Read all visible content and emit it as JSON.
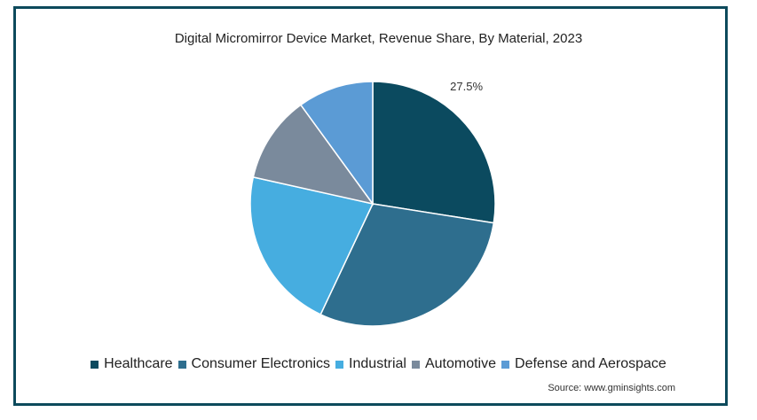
{
  "chart_data": {
    "type": "pie",
    "title": "Digital Micromirror Device Market, Revenue Share, By Material, 2023",
    "categories": [
      "Healthcare",
      "Consumer Electronics",
      "Industrial",
      "Automotive",
      "Defense and Aerospace"
    ],
    "values": [
      27.5,
      29.5,
      21.5,
      11.5,
      10.0
    ],
    "colors": [
      "#0b4a5f",
      "#2e6e8e",
      "#46ade0",
      "#7a8a9c",
      "#5b9bd5"
    ],
    "data_labels": [
      "27.5%",
      "",
      "",
      "",
      ""
    ],
    "legend_position": "bottom"
  },
  "source": "Source: www.gminsights.com"
}
